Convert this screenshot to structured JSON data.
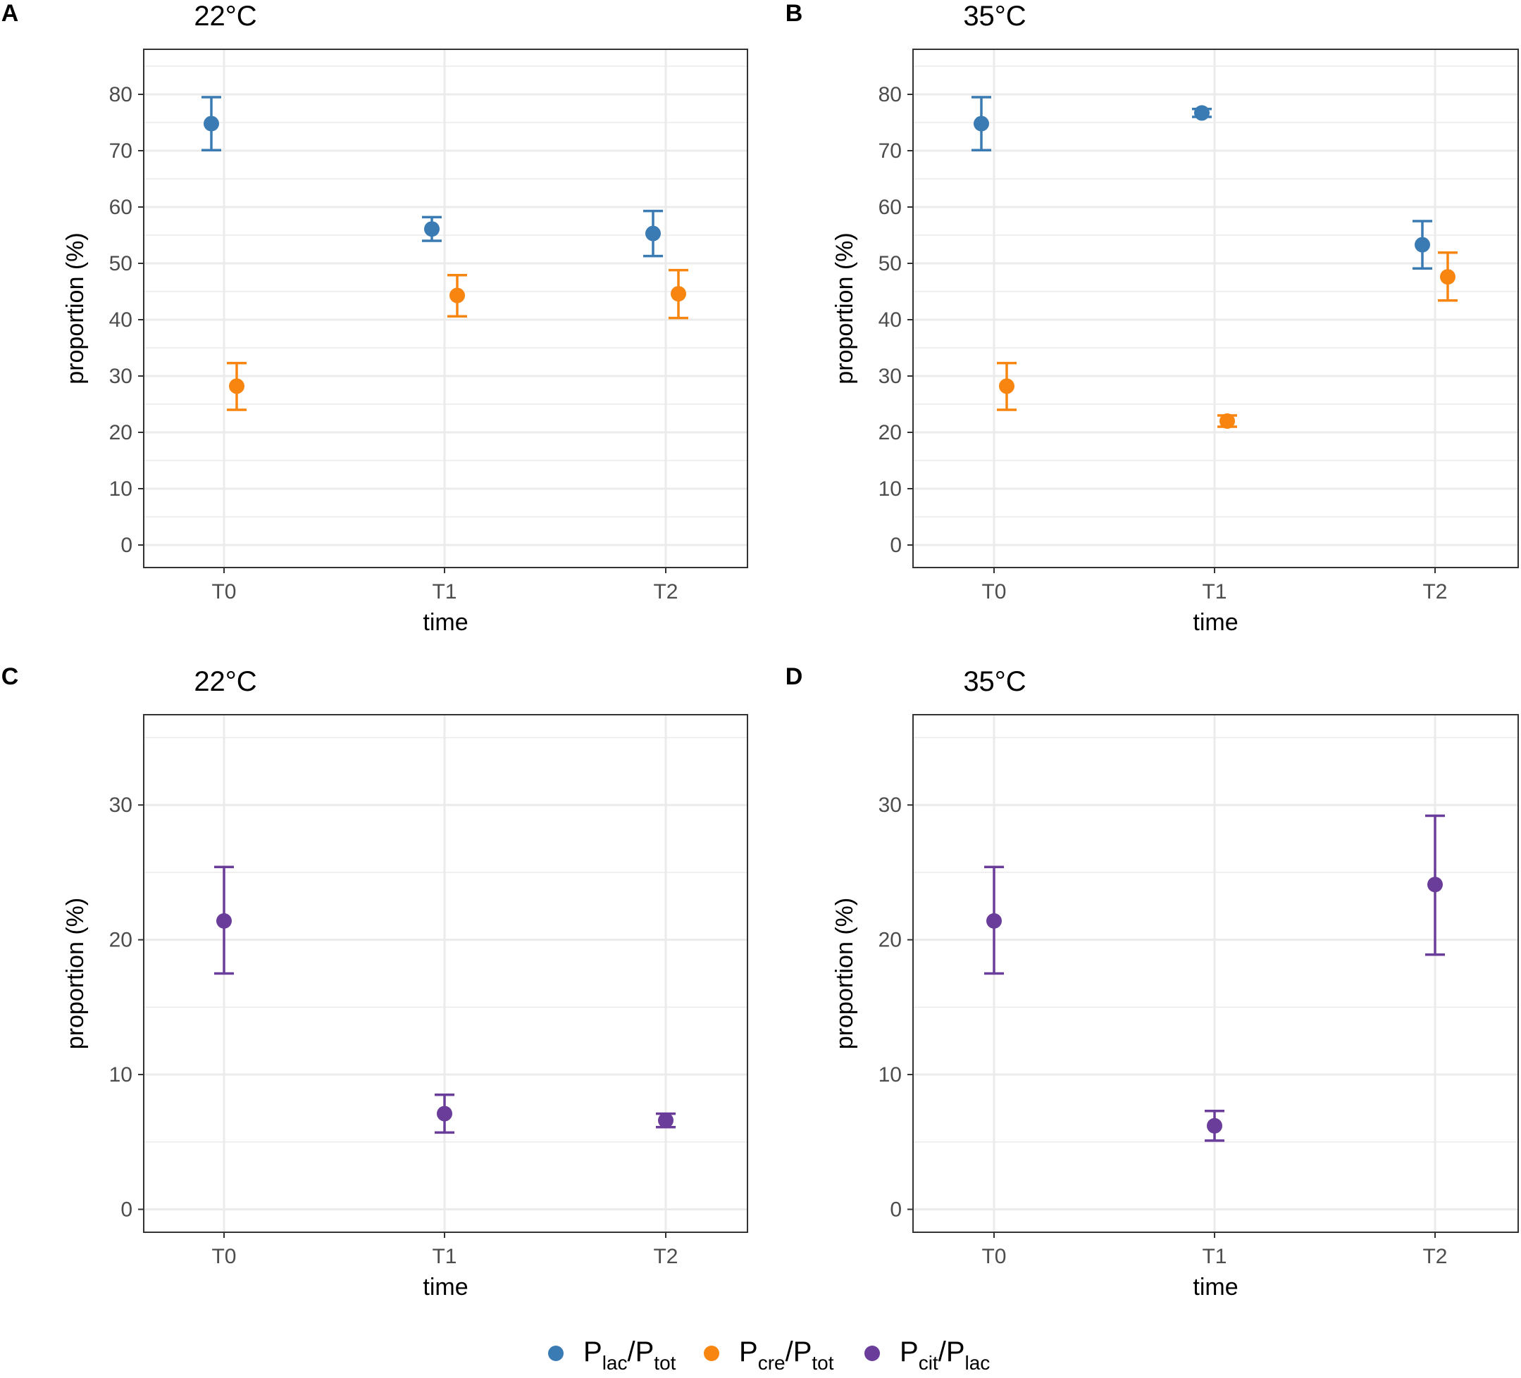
{
  "colors": {
    "lac_tot": "#3a7bb4",
    "cre_tot": "#f7850f",
    "cit_lac": "#6a3d9a",
    "grid": "#ebebeb",
    "panel_border": "#333333"
  },
  "legend": {
    "items": [
      {
        "key": "lac_tot",
        "num_main": "P",
        "num_sub": "lac",
        "slash": "/",
        "den_main": "P",
        "den_sub": "tot"
      },
      {
        "key": "cre_tot",
        "num_main": "P",
        "num_sub": "cre",
        "slash": "/",
        "den_main": "P",
        "den_sub": "tot"
      },
      {
        "key": "cit_lac",
        "num_main": "P",
        "num_sub": "cit",
        "slash": "/",
        "den_main": "P",
        "den_sub": "lac"
      }
    ]
  },
  "chart_data": [
    {
      "panel": "A",
      "title": "22°C",
      "type": "scatter",
      "xlabel": "time",
      "ylabel": "proportion (%)",
      "categories": [
        "T0",
        "T1",
        "T2"
      ],
      "ylim": [
        -4,
        88
      ],
      "yticks": [
        0,
        10,
        20,
        30,
        40,
        50,
        60,
        70,
        80
      ],
      "series": [
        {
          "key": "lac_tot",
          "values": [
            74.8,
            56.1,
            55.3
          ],
          "lower": [
            70.1,
            54.0,
            51.3
          ],
          "upper": [
            79.5,
            58.2,
            59.3
          ]
        },
        {
          "key": "cre_tot",
          "values": [
            28.2,
            44.3,
            44.6
          ],
          "lower": [
            24.0,
            40.6,
            40.3
          ],
          "upper": [
            32.3,
            47.9,
            48.8
          ]
        }
      ]
    },
    {
      "panel": "B",
      "title": "35°C",
      "type": "scatter",
      "xlabel": "time",
      "ylabel": "proportion (%)",
      "categories": [
        "T0",
        "T1",
        "T2"
      ],
      "ylim": [
        -4,
        88
      ],
      "yticks": [
        0,
        10,
        20,
        30,
        40,
        50,
        60,
        70,
        80
      ],
      "series": [
        {
          "key": "lac_tot",
          "values": [
            74.8,
            76.7,
            53.3
          ],
          "lower": [
            70.1,
            76.0,
            49.1
          ],
          "upper": [
            79.5,
            77.4,
            57.5
          ]
        },
        {
          "key": "cre_tot",
          "values": [
            28.2,
            22.0,
            47.6
          ],
          "lower": [
            24.0,
            21.0,
            43.4
          ],
          "upper": [
            32.3,
            23.0,
            51.9
          ]
        }
      ]
    },
    {
      "panel": "C",
      "title": "22°C",
      "type": "scatter",
      "xlabel": "time",
      "ylabel": "proportion (%)",
      "categories": [
        "T0",
        "T1",
        "T2"
      ],
      "ylim": [
        -1.7,
        36.7
      ],
      "yticks": [
        0,
        10,
        20,
        30
      ],
      "series": [
        {
          "key": "cit_lac",
          "values": [
            21.4,
            7.1,
            6.6
          ],
          "lower": [
            17.5,
            5.7,
            6.1
          ],
          "upper": [
            25.4,
            8.5,
            7.1
          ]
        }
      ]
    },
    {
      "panel": "D",
      "title": "35°C",
      "type": "scatter",
      "xlabel": "time",
      "ylabel": "proportion (%)",
      "categories": [
        "T0",
        "T1",
        "T2"
      ],
      "ylim": [
        -1.7,
        36.7
      ],
      "yticks": [
        0,
        10,
        20,
        30
      ],
      "series": [
        {
          "key": "cit_lac",
          "values": [
            21.4,
            6.2,
            24.1
          ],
          "lower": [
            17.5,
            5.1,
            18.9
          ],
          "upper": [
            25.4,
            7.3,
            29.2
          ]
        }
      ]
    }
  ]
}
